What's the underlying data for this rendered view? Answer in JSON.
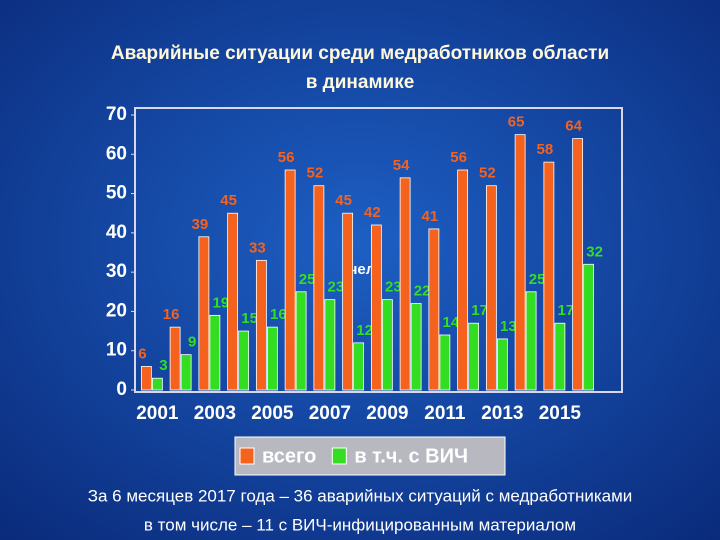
{
  "chart_data": {
    "type": "bar",
    "title": [
      "Аварийные ситуации среди медработников области",
      "в динамике"
    ],
    "categories": [
      "2001",
      null,
      "2003",
      null,
      "2005",
      null,
      "2007",
      null,
      "2009",
      null,
      "2011",
      null,
      "2013",
      null,
      "2015",
      null
    ],
    "series": [
      {
        "name": "всего",
        "color": "#f4621e",
        "values": [
          6,
          16,
          39,
          45,
          33,
          56,
          52,
          45,
          42,
          54,
          41,
          56,
          52,
          65,
          58,
          64
        ]
      },
      {
        "name": "в т.ч. с ВИЧ",
        "color": "#33dd22",
        "values": [
          3,
          9,
          19,
          15,
          16,
          25,
          23,
          12,
          23,
          22,
          14,
          17,
          13,
          25,
          17,
          32
        ]
      }
    ],
    "ylim": [
      0,
      70
    ],
    "yticks": [
      0,
      10,
      20,
      30,
      40,
      50,
      60,
      70
    ],
    "grid": false,
    "annotation": "чел",
    "notes": [
      "За 6 месяцев 2017 года – 36 аварийных ситуаций с медработниками",
      "в том числе – 11 с ВИЧ-инфицированным материалом"
    ]
  }
}
